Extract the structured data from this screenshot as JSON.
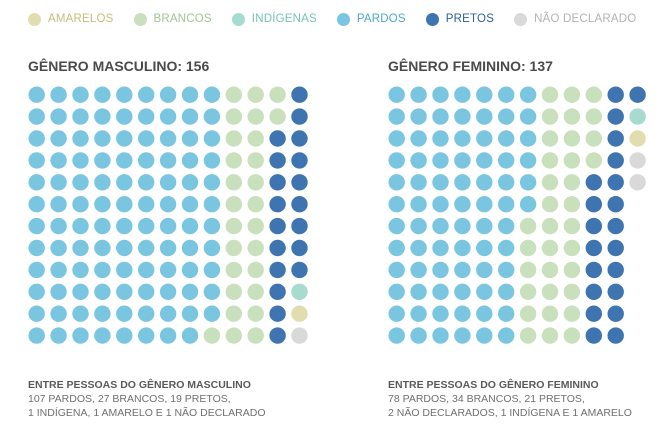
{
  "legend": [
    {
      "key": "amarelos",
      "label": "AMARELOS",
      "color": "#e2ddae",
      "text_color": "#c4bd7a",
      "icon": "yellow-dot-icon"
    },
    {
      "key": "brancos",
      "label": "BRANCOS",
      "color": "#c9e0bc",
      "text_color": "#9fc690",
      "icon": "light-green-dot-icon"
    },
    {
      "key": "indigenas",
      "label": "INDÍGENAS",
      "color": "#a7dbd0",
      "text_color": "#74c3b4",
      "icon": "teal-dot-icon"
    },
    {
      "key": "pardos",
      "label": "PARDOS",
      "color": "#7ac6e0",
      "text_color": "#4ba8c9",
      "icon": "light-blue-dot-icon"
    },
    {
      "key": "pretos",
      "label": "PRETOS",
      "color": "#3e74b0",
      "text_color": "#2c5f9b",
      "icon": "dark-blue-dot-icon"
    },
    {
      "key": "nao_declarado",
      "label": "NÃO DECLARADO",
      "color": "#d9d9d9",
      "text_color": "#b3b3b3",
      "icon": "gray-dot-icon"
    }
  ],
  "panels": {
    "masculino": {
      "title": "GÊNERO MASCULINO: 156",
      "note_title": "ENTRE PESSOAS DO GÊNERO MASCULINO",
      "note_line1": "107 PARDOS, 27 BRANCOS, 19 PRETOS,",
      "note_line2": "1 INDÍGENA, 1 AMARELO E 1 NÃO DECLARADO"
    },
    "feminino": {
      "title": "GÊNERO FEMININO: 137",
      "note_title": "ENTRE PESSOAS DO GÊNERO FEMININO",
      "note_line1": "78 PARDOS, 34 BRANCOS, 21 PRETOS,",
      "note_line2": "2 NÃO DECLARADOS, 1 INDÍGENA E 1 AMARELO"
    }
  },
  "chart_data": [
    {
      "type": "dot-grid",
      "title": "GÊNERO MASCULINO: 156",
      "total": 156,
      "rows": 12,
      "columns": 13,
      "categories": [
        "PARDOS",
        "BRANCOS",
        "PRETOS",
        "INDÍGENAS",
        "AMARELOS",
        "NÃO DECLARADO"
      ],
      "values": [
        107,
        27,
        19,
        1,
        1,
        1
      ],
      "column_counts": {
        "pardos": [
          12,
          12,
          12,
          12,
          12,
          12,
          12,
          12,
          11,
          0,
          0,
          0,
          0
        ],
        "brancos": [
          0,
          0,
          0,
          0,
          0,
          0,
          0,
          0,
          1,
          12,
          12,
          2,
          0
        ],
        "pretos": [
          0,
          0,
          0,
          0,
          0,
          0,
          0,
          0,
          0,
          0,
          0,
          10,
          9
        ],
        "indigenas": [
          0,
          0,
          0,
          0,
          0,
          0,
          0,
          0,
          0,
          0,
          0,
          0,
          1
        ],
        "amarelos": [
          0,
          0,
          0,
          0,
          0,
          0,
          0,
          0,
          0,
          0,
          0,
          0,
          1
        ],
        "nao_declarado": [
          0,
          0,
          0,
          0,
          0,
          0,
          0,
          0,
          0,
          0,
          0,
          0,
          1
        ]
      }
    },
    {
      "type": "dot-grid",
      "title": "GÊNERO FEMININO: 137",
      "total": 137,
      "rows": 12,
      "columns": 12,
      "categories": [
        "PARDOS",
        "BRANCOS",
        "PRETOS",
        "NÃO DECLARADOS",
        "INDÍGENA",
        "AMARELO"
      ],
      "values": [
        78,
        34,
        21,
        2,
        1,
        1
      ],
      "column_counts": {
        "pardos": [
          12,
          12,
          12,
          12,
          12,
          12,
          6,
          0,
          0,
          0,
          0,
          0
        ],
        "brancos": [
          0,
          0,
          0,
          0,
          0,
          0,
          6,
          12,
          12,
          4,
          0,
          0
        ],
        "pretos": [
          0,
          0,
          0,
          0,
          0,
          0,
          0,
          0,
          0,
          8,
          12,
          1
        ],
        "nao_declarado": [
          0,
          0,
          0,
          0,
          0,
          0,
          0,
          0,
          0,
          0,
          0,
          2
        ],
        "indigenas": [
          0,
          0,
          0,
          0,
          0,
          0,
          0,
          0,
          0,
          0,
          0,
          1
        ],
        "amarelos": [
          0,
          0,
          0,
          0,
          0,
          0,
          0,
          0,
          0,
          0,
          0,
          1
        ]
      }
    }
  ]
}
